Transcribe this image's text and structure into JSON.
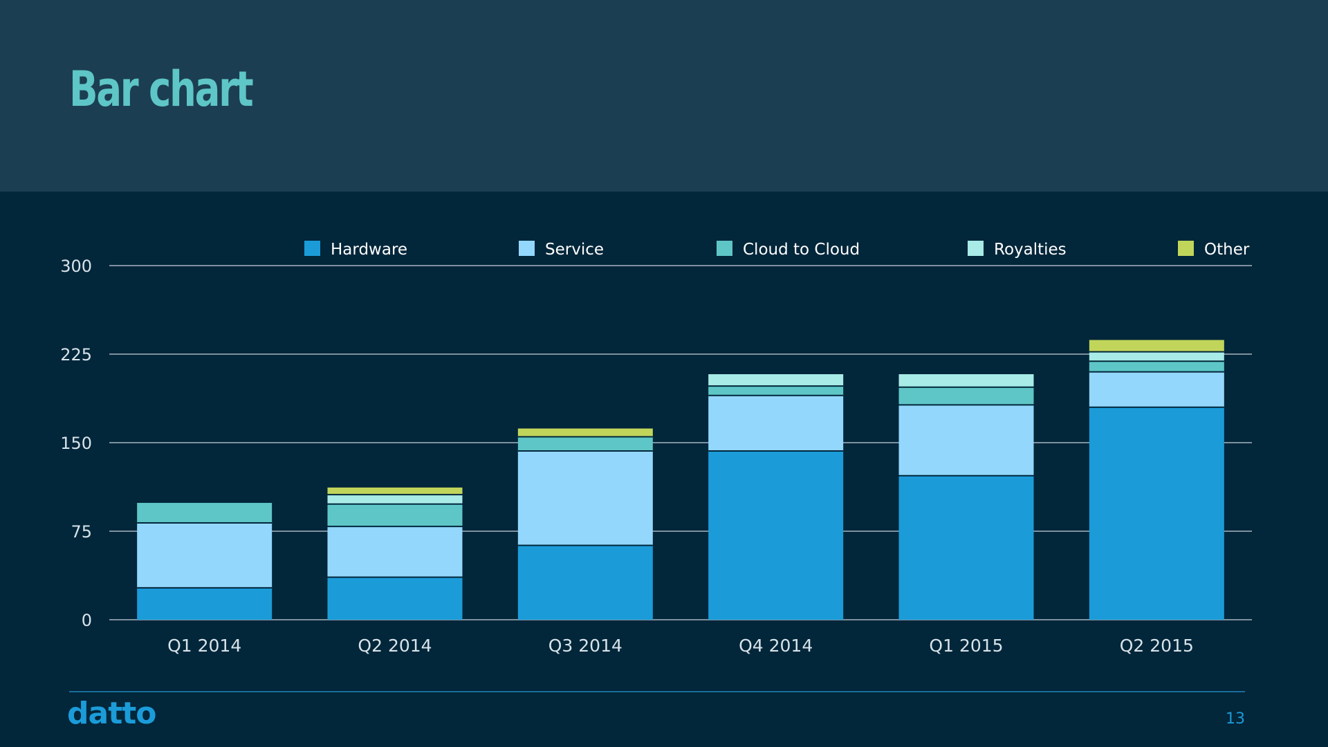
{
  "slide": {
    "title": "Bar chart",
    "logo": "datto",
    "page_number": "13"
  },
  "colors": {
    "background": "#02263a",
    "header": "#1c3e52",
    "title": "#5ec6c6",
    "axis_text": "#d8e4ea",
    "gridline": "#c8d4da"
  },
  "chart_data": {
    "type": "bar",
    "stacked": true,
    "categories": [
      "Q1 2014",
      "Q2 2014",
      "Q3 2014",
      "Q4 2014",
      "Q1 2015",
      "Q2 2015"
    ],
    "series": [
      {
        "name": "Hardware",
        "color": "#1b9cd9",
        "values": [
          27,
          36,
          63,
          143,
          122,
          180
        ]
      },
      {
        "name": "Service",
        "color": "#93d7fc",
        "values": [
          55,
          43,
          80,
          47,
          60,
          30
        ]
      },
      {
        "name": "Cloud to Cloud",
        "color": "#5ec6c6",
        "values": [
          17,
          19,
          12,
          8,
          15,
          9
        ]
      },
      {
        "name": "Royalties",
        "color": "#a8ebe7",
        "values": [
          0,
          8,
          0,
          10,
          11,
          8
        ]
      },
      {
        "name": "Other",
        "color": "#c1d55a",
        "values": [
          0,
          6,
          7,
          0,
          0,
          10
        ]
      }
    ],
    "ylim": [
      0,
      300
    ],
    "yticks": [
      0,
      75,
      150,
      225,
      300
    ],
    "grid": true,
    "legend_position": "top"
  }
}
